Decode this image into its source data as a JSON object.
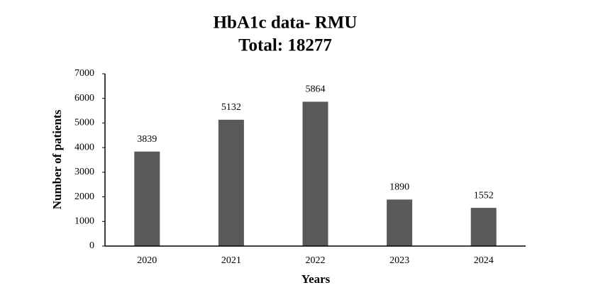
{
  "chart_data": {
    "type": "bar",
    "title": "HbA1c data- RMU",
    "subtitle": "Total: 18277",
    "x_label": "Years",
    "y_label": "Number of patients",
    "categories": [
      "2020",
      "2021",
      "2022",
      "2023",
      "2024"
    ],
    "values": [
      3839,
      5132,
      5864,
      1890,
      1552
    ],
    "color": "#595959",
    "ylim": [
      0,
      7000
    ],
    "yticks": [
      0,
      1000,
      2000,
      3000,
      4000,
      5000,
      6000,
      7000
    ],
    "grid": false
  }
}
